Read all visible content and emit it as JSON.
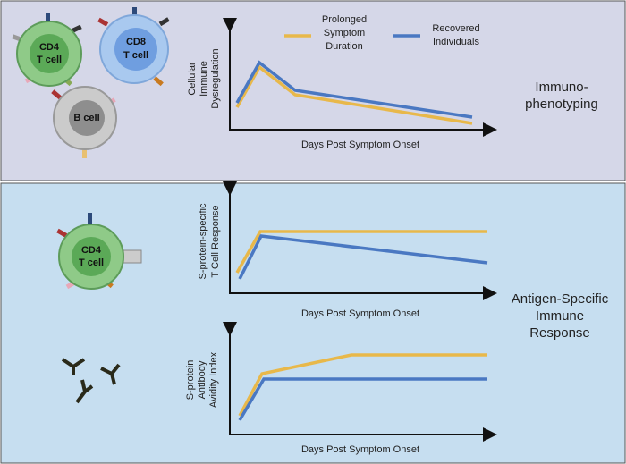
{
  "legend": [
    {
      "lines": [
        "Prolonged",
        "Symptom",
        "Duration"
      ]
    },
    {
      "lines": [
        "Recovered",
        "Individuals"
      ]
    }
  ],
  "panels": [
    {
      "label": [
        "Immuno-",
        "phenotyping"
      ],
      "cells": [
        {
          "lines": [
            "CD4",
            "T cell"
          ]
        },
        {
          "lines": [
            "CD8",
            "T cell"
          ]
        },
        {
          "lines": [
            "B cell"
          ]
        }
      ],
      "charts": [
        {
          "y_label": [
            "Cellular",
            "Immune",
            "Dysregulation"
          ],
          "x_label": "Days Post Symptom Onset"
        }
      ]
    },
    {
      "label": [
        "Antigen-Specific",
        "Immune",
        "Response"
      ],
      "cells": [
        {
          "lines": [
            "CD4",
            "T cell"
          ]
        }
      ],
      "charts": [
        {
          "y_label": [
            "S-protein-specific",
            "T Cell Response"
          ],
          "x_label": "Days Post Symptom Onset"
        },
        {
          "y_label": [
            "S-protein",
            "Antibody",
            "Avidity Index"
          ],
          "x_label": "Days Post Symptom Onset"
        }
      ]
    }
  ]
}
